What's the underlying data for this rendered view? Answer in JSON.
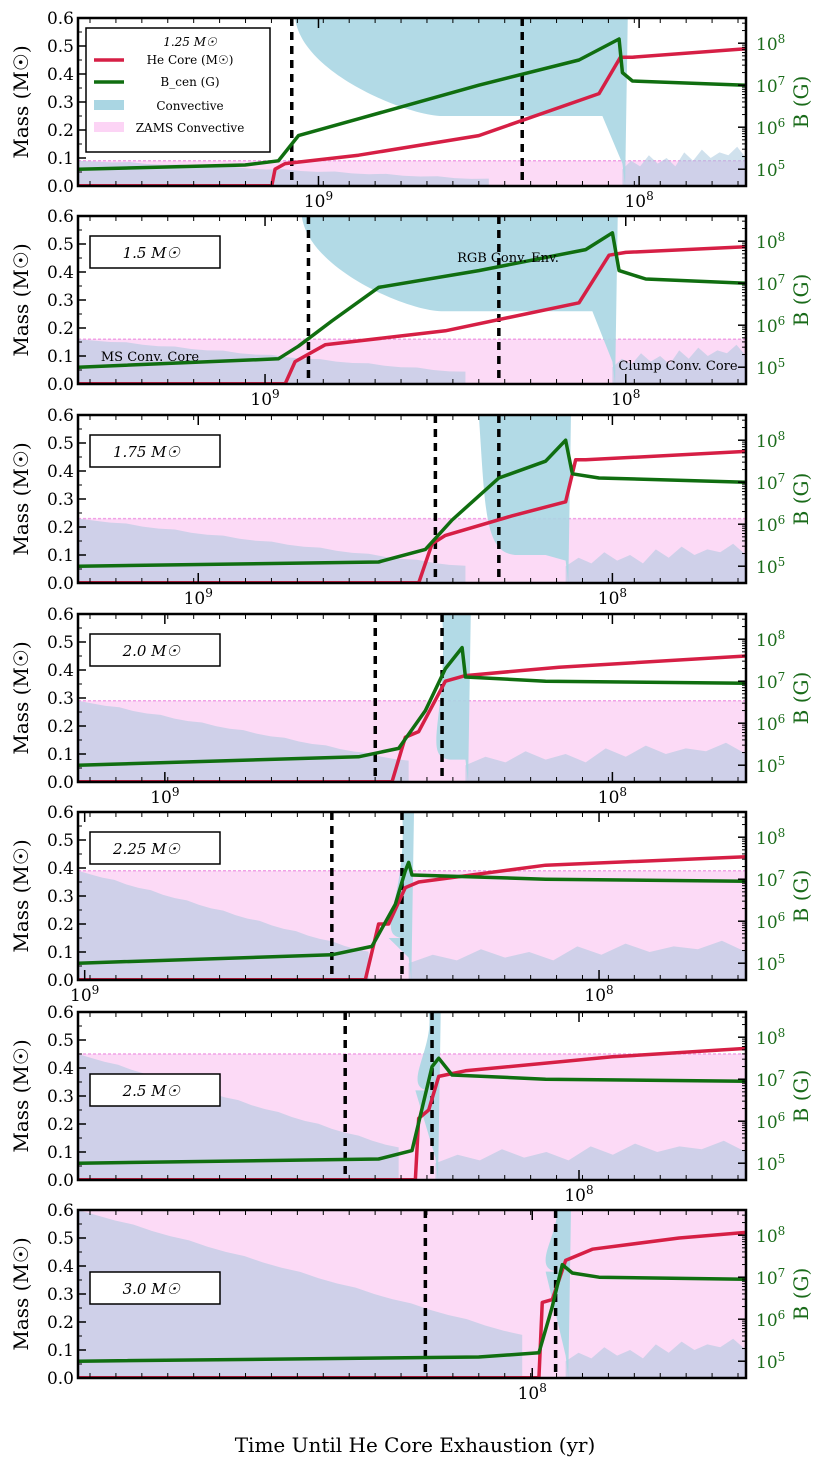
{
  "chart_data": {
    "type": "line",
    "x_label": "Time Until He Core Exhaustion (yr)",
    "y_label_left": "Mass (M☉)",
    "y_label_right": "B (G)",
    "y_ticks_left": [
      "0.0",
      "0.1",
      "0.2",
      "0.3",
      "0.4",
      "0.5",
      "0.6"
    ],
    "y_ticks_right": [
      "10^5",
      "10^6",
      "10^7",
      "10^8"
    ],
    "ylim_left": [
      0,
      0.6
    ],
    "ylim_right_log10": [
      4.6,
      8.6
    ],
    "x_scale": "log, reversed (time decreasing to the right)",
    "legend": {
      "placement": "upper-left (first panel)",
      "entries": [
        {
          "label": "1.25 M☉",
          "kind": "title"
        },
        {
          "label": "He Core (M☉)",
          "color": "#d61f45",
          "kind": "line"
        },
        {
          "label": "B_cen (G)",
          "color": "#106e10",
          "kind": "line"
        },
        {
          "label": "Convective",
          "color": "#aad6e3",
          "kind": "patch"
        },
        {
          "label": "ZAMS Convective",
          "color": "#fcd4f5",
          "kind": "patch"
        }
      ]
    },
    "annotations": {
      "rgb_env": "RGB Conv. Env.",
      "ms_core": "MS Conv. Core",
      "clump_core": "Clump Conv. Core"
    },
    "panels": [
      {
        "mass_label": "1.25 M☉",
        "x_tick_labels": [
          "10^9",
          "10^8"
        ],
        "zams_conv": 0.09,
        "vlines_frac": [
          0.32,
          0.665
        ],
        "env_conv": {
          "x0": 0.325,
          "x1": 0.815,
          "bottom": 0.25
        },
        "he_core": [
          [
            0.29,
            0
          ],
          [
            0.295,
            0.06
          ],
          [
            0.31,
            0.08
          ],
          [
            0.42,
            0.11
          ],
          [
            0.6,
            0.18
          ],
          [
            0.78,
            0.33
          ],
          [
            0.812,
            0.46
          ],
          [
            0.83,
            0.46
          ],
          [
            1.0,
            0.49
          ]
        ],
        "b_cen_log10": [
          [
            0,
            5.0
          ],
          [
            0.25,
            5.1
          ],
          [
            0.3,
            5.2
          ],
          [
            0.33,
            5.8
          ],
          [
            0.42,
            6.2
          ],
          [
            0.6,
            7.0
          ],
          [
            0.75,
            7.6
          ],
          [
            0.81,
            8.1
          ],
          [
            0.815,
            7.3
          ],
          [
            0.83,
            7.1
          ],
          [
            1.0,
            7.0
          ]
        ]
      },
      {
        "mass_label": "1.5 M☉",
        "x_tick_labels": [
          "10^9",
          "10^8"
        ],
        "zams_conv": 0.16,
        "vlines_frac": [
          0.345,
          0.63
        ],
        "env_conv": {
          "x0": 0.335,
          "x1": 0.8,
          "bottom": 0.26
        },
        "he_core": [
          [
            0.31,
            0
          ],
          [
            0.325,
            0.08
          ],
          [
            0.37,
            0.14
          ],
          [
            0.55,
            0.19
          ],
          [
            0.75,
            0.29
          ],
          [
            0.795,
            0.46
          ],
          [
            0.82,
            0.47
          ],
          [
            1.0,
            0.49
          ]
        ],
        "b_cen_log10": [
          [
            0,
            5.0
          ],
          [
            0.3,
            5.2
          ],
          [
            0.33,
            5.5
          ],
          [
            0.38,
            6.1
          ],
          [
            0.45,
            6.9
          ],
          [
            0.6,
            7.3
          ],
          [
            0.76,
            7.8
          ],
          [
            0.8,
            8.2
          ],
          [
            0.81,
            7.3
          ],
          [
            0.85,
            7.1
          ],
          [
            1.0,
            7.0
          ]
        ]
      },
      {
        "mass_label": "1.75 M☉",
        "x_tick_labels": [
          "10^9",
          "10^8"
        ],
        "zams_conv": 0.23,
        "vlines_frac": [
          0.535,
          0.63
        ],
        "env_conv": {
          "x0": 0.6,
          "x1": 0.73,
          "bottom": 0.1
        },
        "he_core": [
          [
            0.51,
            0
          ],
          [
            0.53,
            0.14
          ],
          [
            0.55,
            0.17
          ],
          [
            0.65,
            0.24
          ],
          [
            0.73,
            0.29
          ],
          [
            0.745,
            0.44
          ],
          [
            0.76,
            0.44
          ],
          [
            1.0,
            0.47
          ]
        ],
        "b_cen_log10": [
          [
            0,
            5.0
          ],
          [
            0.45,
            5.1
          ],
          [
            0.52,
            5.4
          ],
          [
            0.56,
            6.1
          ],
          [
            0.63,
            7.1
          ],
          [
            0.7,
            7.5
          ],
          [
            0.73,
            8.0
          ],
          [
            0.74,
            7.2
          ],
          [
            0.78,
            7.1
          ],
          [
            1.0,
            7.0
          ]
        ]
      },
      {
        "mass_label": "2.0 M☉",
        "x_tick_labels": [
          "10^9",
          "10^8"
        ],
        "zams_conv": 0.29,
        "vlines_frac": [
          0.445,
          0.545
        ],
        "env_conv": {
          "x0": 0.545,
          "x1": 0.58,
          "bottom": 0.08
        },
        "he_core": [
          [
            0.47,
            0
          ],
          [
            0.49,
            0.16
          ],
          [
            0.51,
            0.18
          ],
          [
            0.55,
            0.36
          ],
          [
            0.58,
            0.38
          ],
          [
            0.72,
            0.41
          ],
          [
            1.0,
            0.45
          ]
        ],
        "b_cen_log10": [
          [
            0,
            5.0
          ],
          [
            0.42,
            5.2
          ],
          [
            0.48,
            5.4
          ],
          [
            0.52,
            6.3
          ],
          [
            0.55,
            7.3
          ],
          [
            0.575,
            7.8
          ],
          [
            0.58,
            7.1
          ],
          [
            0.7,
            7.0
          ],
          [
            1.0,
            6.95
          ]
        ]
      },
      {
        "mass_label": "2.25 M☉",
        "x_tick_labels": [
          "10^9",
          "10^8"
        ],
        "zams_conv": 0.39,
        "vlines_frac": [
          0.38,
          0.485
        ],
        "env_conv": {
          "x0": 0.485,
          "x1": 0.495,
          "bottom": 0.15
        },
        "he_core": [
          [
            0.43,
            0
          ],
          [
            0.45,
            0.2
          ],
          [
            0.465,
            0.2
          ],
          [
            0.49,
            0.33
          ],
          [
            0.51,
            0.35
          ],
          [
            0.7,
            0.41
          ],
          [
            1.0,
            0.44
          ]
        ],
        "b_cen_log10": [
          [
            0,
            5.0
          ],
          [
            0.38,
            5.2
          ],
          [
            0.44,
            5.4
          ],
          [
            0.475,
            6.4
          ],
          [
            0.49,
            7.2
          ],
          [
            0.495,
            7.4
          ],
          [
            0.5,
            7.1
          ],
          [
            0.7,
            7.0
          ],
          [
            1.0,
            6.95
          ]
        ]
      },
      {
        "mass_label": "2.5 M☉",
        "x_tick_labels": [
          "10^8"
        ],
        "zams_conv": 0.45,
        "vlines_frac": [
          0.4,
          0.53
        ],
        "env_conv": {
          "x0": 0.525,
          "x1": 0.535,
          "bottom": 0.32
        },
        "he_core": [
          [
            0.505,
            0
          ],
          [
            0.51,
            0.22
          ],
          [
            0.525,
            0.25
          ],
          [
            0.54,
            0.37
          ],
          [
            0.58,
            0.39
          ],
          [
            0.8,
            0.44
          ],
          [
            1.0,
            0.47
          ]
        ],
        "b_cen_log10": [
          [
            0,
            5.0
          ],
          [
            0.45,
            5.1
          ],
          [
            0.5,
            5.3
          ],
          [
            0.515,
            6.3
          ],
          [
            0.53,
            7.3
          ],
          [
            0.54,
            7.5
          ],
          [
            0.56,
            7.1
          ],
          [
            0.7,
            7.0
          ],
          [
            1.0,
            6.95
          ]
        ]
      },
      {
        "mass_label": "3.0 M☉",
        "x_tick_labels": [
          "10^8"
        ],
        "zams_conv": 0.6,
        "vlines_frac": [
          0.52,
          0.715
        ],
        "env_conv": {
          "x0": 0.715,
          "x1": 0.73,
          "bottom": 0.38
        },
        "he_core": [
          [
            0.69,
            0
          ],
          [
            0.695,
            0.27
          ],
          [
            0.71,
            0.28
          ],
          [
            0.73,
            0.42
          ],
          [
            0.77,
            0.46
          ],
          [
            0.9,
            0.5
          ],
          [
            1.0,
            0.52
          ]
        ],
        "b_cen_log10": [
          [
            0,
            5.0
          ],
          [
            0.6,
            5.1
          ],
          [
            0.69,
            5.2
          ],
          [
            0.71,
            6.3
          ],
          [
            0.725,
            7.3
          ],
          [
            0.74,
            7.1
          ],
          [
            0.78,
            7.0
          ],
          [
            1.0,
            6.95
          ]
        ]
      }
    ]
  }
}
